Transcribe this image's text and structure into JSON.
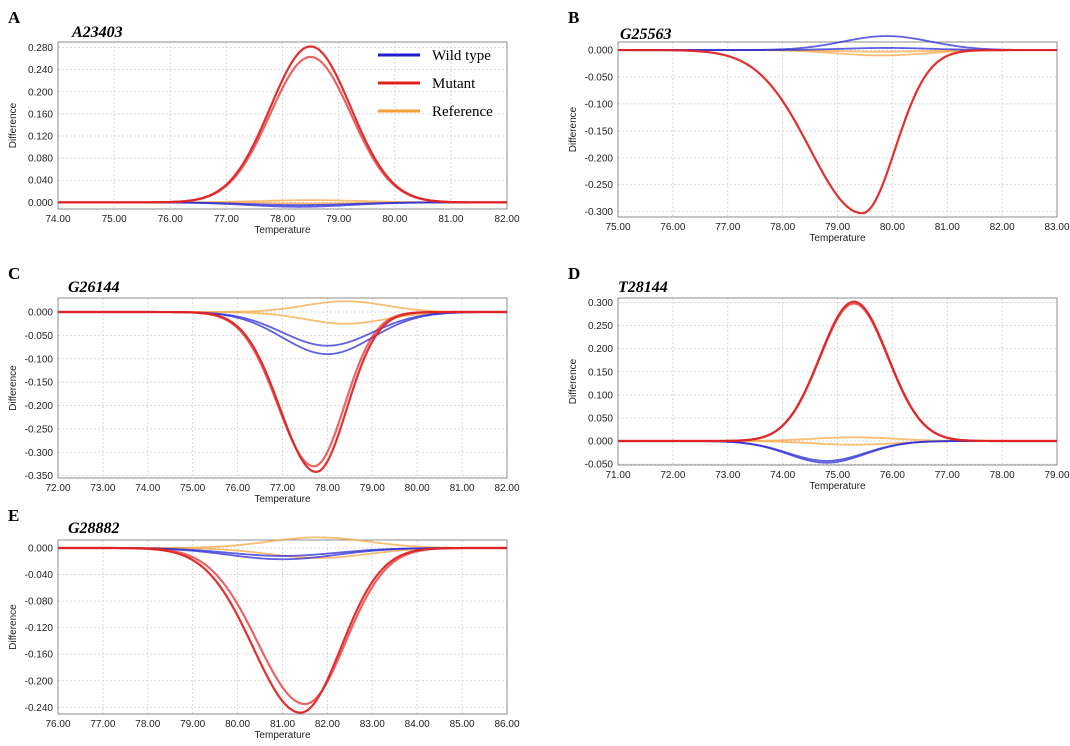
{
  "panels": [
    {
      "letter": "A",
      "gene": "A23403"
    },
    {
      "letter": "B",
      "gene": "G25563"
    },
    {
      "letter": "C",
      "gene": "G26144"
    },
    {
      "letter": "D",
      "gene": "T28144"
    },
    {
      "letter": "E",
      "gene": "G28882"
    }
  ],
  "legend": [
    {
      "label": "Wild type",
      "color": "#1f1fcc"
    },
    {
      "label": "Mutant",
      "color": "#e02020"
    },
    {
      "label": "Reference",
      "color": "#f5a033"
    }
  ],
  "colors": {
    "wild": "#2b2bd6",
    "mutant": "#e02424",
    "reference": "#f7a745",
    "grid": "#d8d8d8"
  },
  "chart_data": [
    {
      "type": "line",
      "letter": "A",
      "title": "A23403",
      "xlabel": "Temperature",
      "ylabel": "Difference",
      "xlim": [
        74,
        82
      ],
      "ylim": [
        -0.012,
        0.29
      ],
      "xticks": [
        "74.00",
        "75.00",
        "76.00",
        "77.00",
        "78.00",
        "79.00",
        "80.00",
        "81.00",
        "82.00"
      ],
      "yticks": [
        "0.000",
        "0.040",
        "0.080",
        "0.120",
        "0.160",
        "0.200",
        "0.240",
        "0.280"
      ],
      "series": [
        {
          "group": "mutant",
          "kind": "peak",
          "center": 78.5,
          "amplitude": 0.282,
          "width": 0.72
        },
        {
          "group": "mutant",
          "kind": "peak",
          "center": 78.5,
          "amplitude": 0.263,
          "width": 0.72
        },
        {
          "group": "wild",
          "kind": "peak",
          "center": 78.3,
          "amplitude": -0.008,
          "width": 0.9
        },
        {
          "group": "wild",
          "kind": "peak",
          "center": 78.3,
          "amplitude": -0.005,
          "width": 0.9
        },
        {
          "group": "reference",
          "kind": "peak",
          "center": 78.5,
          "amplitude": 0.004,
          "width": 0.9
        },
        {
          "group": "reference",
          "kind": "peak",
          "center": 78.5,
          "amplitude": -0.002,
          "width": 0.9
        }
      ]
    },
    {
      "type": "line",
      "letter": "B",
      "title": "G25563",
      "xlabel": "Temperature",
      "ylabel": "Difference",
      "xlim": [
        75,
        83
      ],
      "ylim": [
        -0.31,
        0.015
      ],
      "xticks": [
        "75.00",
        "76.00",
        "77.00",
        "78.00",
        "79.00",
        "80.00",
        "81.00",
        "82.00",
        "83.00"
      ],
      "yticks": [
        "0.000",
        "-0.050",
        "-0.100",
        "-0.150",
        "-0.200",
        "-0.250",
        "-0.300"
      ],
      "series": [
        {
          "group": "mutant",
          "kind": "peak",
          "center": 79.45,
          "amplitude": -0.303,
          "width": 0.75,
          "width_left": 0.95,
          "width_right": 0.6
        },
        {
          "group": "wild",
          "kind": "peak",
          "center": 79.9,
          "amplitude": 0.026,
          "width": 0.8
        },
        {
          "group": "wild",
          "kind": "peak",
          "center": 79.9,
          "amplitude": 0.004,
          "width": 0.8
        },
        {
          "group": "reference",
          "kind": "peak",
          "center": 79.8,
          "amplitude": -0.01,
          "width": 0.8
        },
        {
          "group": "reference",
          "kind": "peak",
          "center": 79.8,
          "amplitude": -0.003,
          "width": 0.8
        }
      ]
    },
    {
      "type": "line",
      "letter": "C",
      "title": "G26144",
      "xlabel": "Temperature",
      "ylabel": "Difference",
      "xlim": [
        72,
        82
      ],
      "ylim": [
        -0.355,
        0.03
      ],
      "xticks": [
        "72.00",
        "73.00",
        "74.00",
        "75.00",
        "76.00",
        "77.00",
        "78.00",
        "79.00",
        "80.00",
        "81.00",
        "82.00"
      ],
      "yticks": [
        "0.000",
        "-0.050",
        "-0.100",
        "-0.150",
        "-0.200",
        "-0.250",
        "-0.300",
        "-0.350"
      ],
      "series": [
        {
          "group": "mutant",
          "kind": "peak",
          "center": 77.75,
          "amplitude": -0.342,
          "width": 0.72,
          "width_left": 0.8,
          "width_right": 0.68
        },
        {
          "group": "mutant",
          "kind": "peak",
          "center": 77.7,
          "amplitude": -0.33,
          "width": 0.72,
          "width_left": 0.8,
          "width_right": 0.68
        },
        {
          "group": "wild",
          "kind": "peak",
          "center": 78.0,
          "amplitude": -0.09,
          "width": 1.0
        },
        {
          "group": "wild",
          "kind": "peak",
          "center": 78.0,
          "amplitude": -0.072,
          "width": 1.0
        },
        {
          "group": "reference",
          "kind": "peak",
          "center": 78.4,
          "amplitude": 0.023,
          "width": 0.9
        },
        {
          "group": "reference",
          "kind": "peak",
          "center": 78.4,
          "amplitude": -0.025,
          "width": 0.9
        }
      ]
    },
    {
      "type": "line",
      "letter": "D",
      "title": "T28144",
      "xlabel": "Temperature",
      "ylabel": "Difference",
      "xlim": [
        71,
        79
      ],
      "ylim": [
        -0.052,
        0.31
      ],
      "xticks": [
        "71.00",
        "72.00",
        "73.00",
        "74.00",
        "75.00",
        "76.00",
        "77.00",
        "78.00",
        "79.00"
      ],
      "yticks": [
        "0.300",
        "0.250",
        "0.200",
        "0.150",
        "0.100",
        "0.050",
        "0.000",
        "-0.050"
      ],
      "series": [
        {
          "group": "mutant",
          "kind": "peak",
          "center": 75.3,
          "amplitude": 0.302,
          "width": 0.62
        },
        {
          "group": "mutant",
          "kind": "peak",
          "center": 75.3,
          "amplitude": 0.298,
          "width": 0.62
        },
        {
          "group": "wild",
          "kind": "peak",
          "center": 74.8,
          "amplitude": -0.047,
          "width": 0.7
        },
        {
          "group": "wild",
          "kind": "peak",
          "center": 74.8,
          "amplitude": -0.043,
          "width": 0.7
        },
        {
          "group": "reference",
          "kind": "peak",
          "center": 75.3,
          "amplitude": 0.008,
          "width": 0.75
        },
        {
          "group": "reference",
          "kind": "peak",
          "center": 75.3,
          "amplitude": -0.008,
          "width": 0.75
        }
      ]
    },
    {
      "type": "line",
      "letter": "E",
      "title": "G28882",
      "xlabel": "Temperature",
      "ylabel": "Difference",
      "xlim": [
        76,
        86
      ],
      "ylim": [
        -0.25,
        0.012
      ],
      "xticks": [
        "76.00",
        "77.00",
        "78.00",
        "79.00",
        "80.00",
        "81.00",
        "82.00",
        "83.00",
        "84.00",
        "85.00",
        "86.00"
      ],
      "yticks": [
        "0.000",
        "-0.040",
        "-0.080",
        "-0.120",
        "-0.160",
        "-0.200",
        "-0.240"
      ],
      "series": [
        {
          "group": "mutant",
          "kind": "peak",
          "center": 81.4,
          "amplitude": -0.248,
          "width": 0.95,
          "width_left": 1.05,
          "width_right": 0.9
        },
        {
          "group": "mutant",
          "kind": "peak",
          "center": 81.5,
          "amplitude": -0.235,
          "width": 0.95,
          "width_left": 1.05,
          "width_right": 0.9
        },
        {
          "group": "wild",
          "kind": "peak",
          "center": 81.0,
          "amplitude": -0.017,
          "width": 1.2
        },
        {
          "group": "wild",
          "kind": "peak",
          "center": 81.0,
          "amplitude": -0.012,
          "width": 1.2
        },
        {
          "group": "reference",
          "kind": "peak",
          "center": 81.8,
          "amplitude": 0.016,
          "width": 1.1
        },
        {
          "group": "reference",
          "kind": "peak",
          "center": 81.8,
          "amplitude": -0.015,
          "width": 1.1
        }
      ]
    }
  ]
}
